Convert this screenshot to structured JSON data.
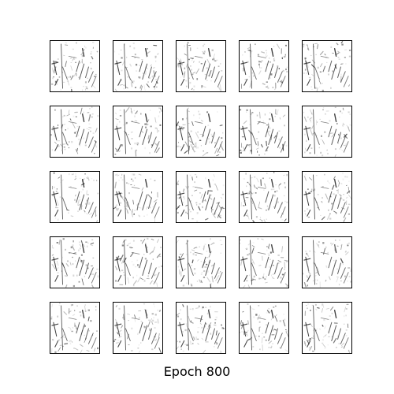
{
  "figure": {
    "caption": "Epoch 800",
    "grid_rows": 5,
    "grid_cols": 5,
    "image_kind": "grayscale-generated-sample"
  },
  "colors": {
    "background": "#ffffff",
    "frame": "#000000",
    "ink": "#1a1a1a",
    "faint": "#9a9a9a"
  }
}
